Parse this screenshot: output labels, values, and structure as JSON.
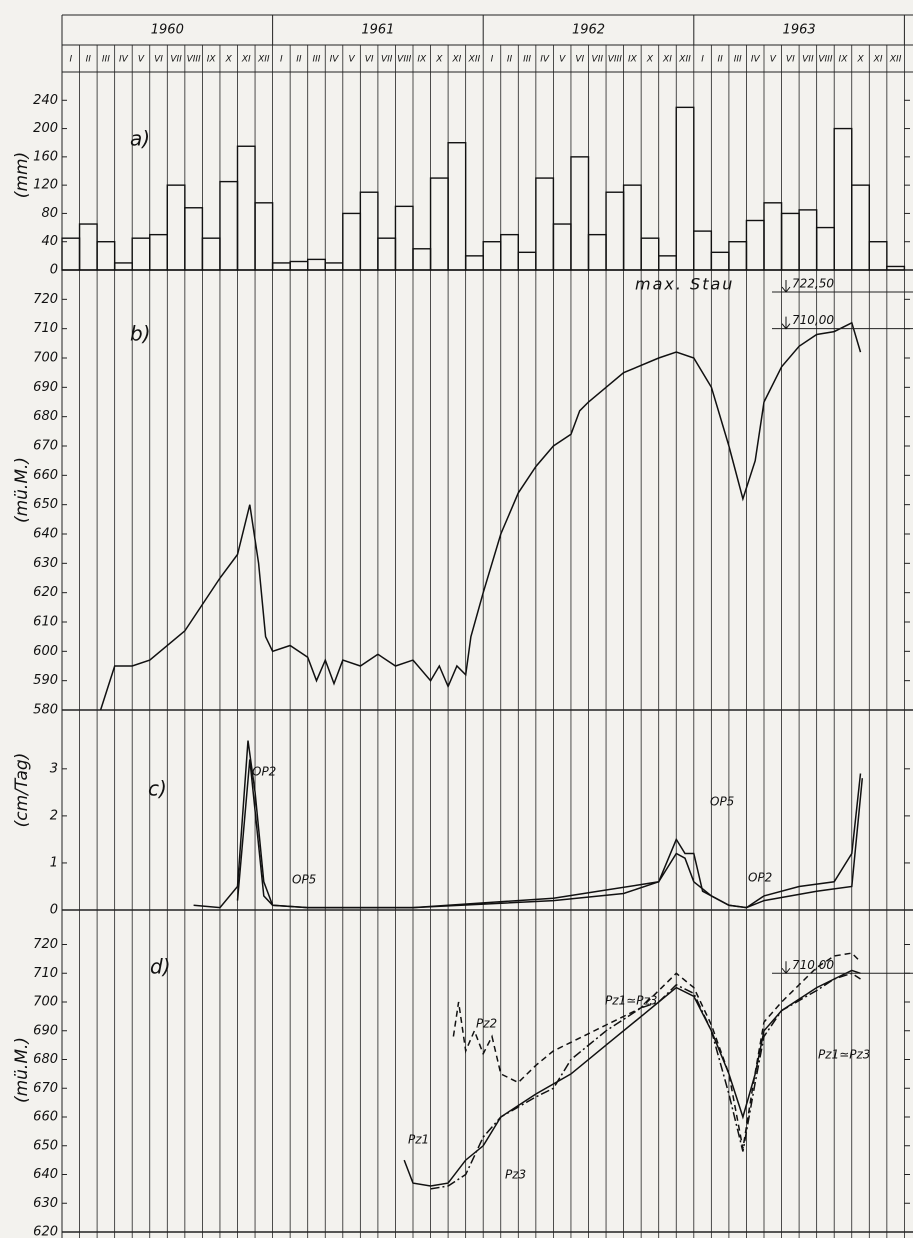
{
  "header": {
    "years": [
      "1960",
      "1961",
      "1962",
      "1963"
    ],
    "months": [
      "I",
      "II",
      "III",
      "IV",
      "V",
      "VI",
      "VII",
      "VIII",
      "IX",
      "X",
      "XI",
      "XII"
    ]
  },
  "chart_data": [
    {
      "type": "histogram",
      "label": "a)",
      "y_label": "(mm)",
      "xlim": [
        0,
        48
      ],
      "ylim": [
        0,
        280
      ],
      "yticks": [
        0,
        40,
        80,
        120,
        160,
        200,
        240
      ],
      "bins": [
        0,
        1,
        2,
        3,
        4,
        5,
        6,
        7,
        8,
        9,
        10,
        11,
        12,
        13,
        14,
        15,
        16,
        17,
        18,
        19,
        20,
        21,
        22,
        23,
        24,
        25,
        26,
        27,
        28,
        29,
        30,
        31,
        32,
        33,
        34,
        35,
        36,
        37,
        38,
        39,
        40,
        41,
        42,
        43,
        44,
        45,
        46,
        47,
        48
      ],
      "values": [
        45,
        65,
        40,
        10,
        45,
        50,
        120,
        88,
        45,
        125,
        175,
        95,
        10,
        12,
        15,
        10,
        80,
        110,
        45,
        90,
        30,
        130,
        180,
        20,
        40,
        50,
        25,
        130,
        65,
        160,
        50,
        110,
        120,
        45,
        20,
        230,
        55,
        25,
        40,
        70,
        95,
        80,
        85,
        60,
        200,
        120,
        40,
        5
      ]
    },
    {
      "type": "line",
      "label": "b)",
      "y_label": "(mü.M.)",
      "xlim": [
        0,
        48
      ],
      "ylim": [
        580,
        730
      ],
      "yticks": [
        580,
        590,
        600,
        610,
        620,
        630,
        640,
        650,
        660,
        670,
        680,
        690,
        700,
        710,
        720
      ],
      "annotation": "max. Stau",
      "levels": [
        {
          "value": 722.5,
          "label": "722,50"
        },
        {
          "value": 710,
          "label": "710,00"
        }
      ],
      "series": [
        {
          "x": [
            2.2,
            3,
            4,
            5,
            7,
            9,
            10,
            10.7,
            11.2,
            11.6,
            12,
            13,
            14,
            14.5,
            15,
            15.5,
            16,
            17,
            18,
            19,
            20,
            21,
            21.5,
            22,
            22.5,
            23,
            23.3,
            24,
            25,
            26,
            27,
            28,
            29,
            29.5,
            30,
            31,
            32,
            34,
            35,
            36,
            37,
            38,
            38.8,
            39.5,
            40,
            41,
            42,
            43,
            44,
            45,
            45.5
          ],
          "y": [
            580,
            595,
            595,
            597,
            607,
            625,
            633,
            650,
            630,
            605,
            600,
            602,
            598,
            590,
            597,
            589,
            597,
            595,
            599,
            595,
            597,
            590,
            595,
            588,
            595,
            592,
            605,
            620,
            640,
            654,
            663,
            670,
            674,
            682,
            685,
            690,
            695,
            700,
            702,
            700,
            690,
            670,
            652,
            665,
            685,
            697,
            704,
            708,
            709,
            712,
            702
          ]
        }
      ]
    },
    {
      "type": "line",
      "label": "c)",
      "y_label": "(cm/Tag)",
      "xlim": [
        0,
        48
      ],
      "ylim": [
        0,
        4.25
      ],
      "yticks": [
        0,
        1,
        2,
        3
      ],
      "series": [
        {
          "name": "OP2",
          "x": [
            7.5,
            9,
            10,
            10.6,
            11,
            11.5,
            12,
            14,
            20,
            28,
            32,
            34,
            35,
            35.5,
            36,
            37,
            38,
            39,
            40,
            42,
            44,
            45,
            45.5
          ],
          "y": [
            0.1,
            0.05,
            0.5,
            3.6,
            2.5,
            0.6,
            0.1,
            0.05,
            0.05,
            0.2,
            0.35,
            0.6,
            1.2,
            1.1,
            0.6,
            0.3,
            0.1,
            0.05,
            0.3,
            0.5,
            0.6,
            1.2,
            2.9
          ]
        },
        {
          "name": "OP5",
          "x": [
            10,
            10.7,
            11.5,
            12,
            14,
            20,
            28,
            34,
            35,
            35.5,
            36,
            36.5,
            38,
            39,
            40,
            43,
            45,
            45.6
          ],
          "y": [
            0.2,
            3.2,
            0.3,
            0.1,
            0.05,
            0.05,
            0.25,
            0.6,
            1.5,
            1.2,
            1.2,
            0.4,
            0.1,
            0.05,
            0.2,
            0.4,
            0.5,
            2.8
          ]
        }
      ]
    },
    {
      "type": "line",
      "label": "d)",
      "y_label": "(mü.M.)",
      "xlim": [
        0,
        48
      ],
      "ylim": [
        620,
        732
      ],
      "yticks": [
        620,
        630,
        640,
        650,
        660,
        670,
        680,
        690,
        700,
        710,
        720
      ],
      "annotation": "Pz1≃Pz3",
      "levels": [
        {
          "value": 710,
          "label": "710,00"
        }
      ],
      "series": [
        {
          "name": "Pz1",
          "dash": "solid",
          "x": [
            19.5,
            20,
            21,
            22,
            23,
            24,
            25,
            27,
            29,
            31,
            33,
            34,
            35,
            36,
            37,
            38,
            38.8,
            39.5,
            40,
            41,
            43,
            44,
            45,
            45.5
          ],
          "y": [
            645,
            637,
            636,
            637,
            645,
            650,
            660,
            668,
            675,
            685,
            695,
            700,
            705,
            702,
            690,
            675,
            660,
            675,
            690,
            697,
            705,
            708,
            711,
            710
          ]
        },
        {
          "name": "Pz2",
          "dash": "dashed",
          "x": [
            22.3,
            22.6,
            23,
            23.5,
            24,
            24.5,
            25,
            26,
            27,
            28,
            29,
            31,
            33,
            35,
            36,
            37,
            38,
            38.8,
            39.4,
            40,
            41,
            43,
            44,
            45,
            45.5
          ],
          "y": [
            688,
            700,
            683,
            690,
            682,
            688,
            675,
            672,
            678,
            683,
            686,
            692,
            698,
            710,
            705,
            692,
            675,
            649,
            672,
            693,
            700,
            712,
            716,
            717,
            714
          ]
        },
        {
          "name": "Pz3",
          "dash": "dashdot",
          "x": [
            21,
            22,
            23,
            24,
            25,
            27,
            28,
            29,
            31,
            33,
            34,
            35,
            36,
            37,
            38,
            38.8,
            39.5,
            40,
            41,
            43,
            44,
            45,
            45.5
          ],
          "y": [
            635,
            636,
            640,
            653,
            660,
            667,
            670,
            680,
            690,
            698,
            700,
            706,
            703,
            690,
            668,
            648,
            672,
            688,
            697,
            704,
            708,
            710,
            708
          ]
        }
      ]
    }
  ]
}
